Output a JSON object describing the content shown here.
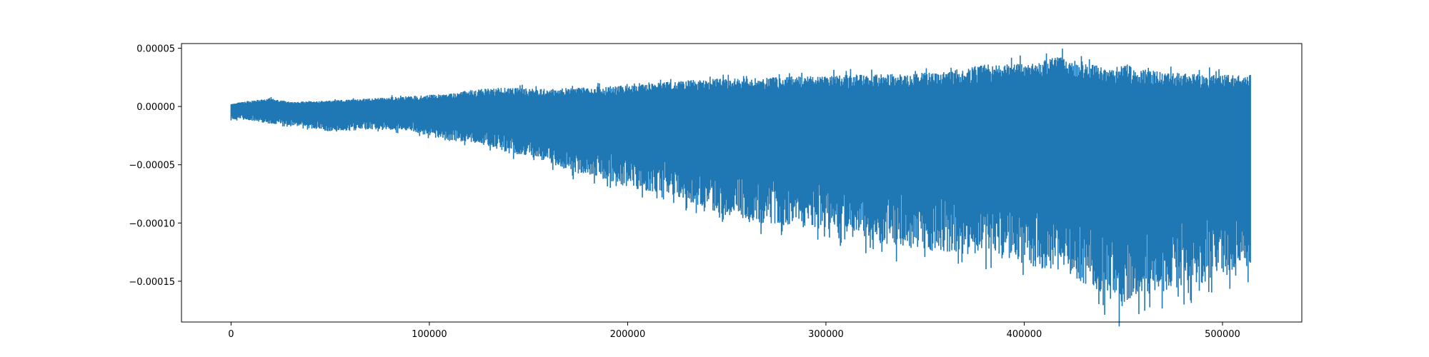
{
  "chart_data": {
    "type": "line",
    "title": "",
    "xlabel": "",
    "ylabel": "",
    "xlim": [
      -25000,
      540000
    ],
    "ylim": [
      -0.000185,
      5.4e-05
    ],
    "grid": false,
    "legend": "none",
    "series": [
      {
        "color": "#1f77b4",
        "style": "dense oscillating trace; upper and lower envelope shown",
        "upper_envelope": {
          "x": [
            0,
            5000,
            10000,
            20000,
            30000,
            50000,
            70000,
            90000,
            110000,
            120000,
            130000,
            140000,
            160000,
            180000,
            200000,
            220000,
            240000,
            260000,
            280000,
            300000,
            320000,
            340000,
            360000,
            380000,
            395000,
            405000,
            415000,
            418000,
            425000,
            435000,
            445000,
            450000,
            455000,
            465000,
            475000,
            485000,
            495000,
            505000,
            514000
          ],
          "y": [
            2e-06,
            4e-06,
            5e-06,
            7e-06,
            4e-06,
            5e-06,
            7e-06,
            9e-06,
            1.1e-05,
            1.4e-05,
            1.6e-05,
            1.6e-05,
            1.5e-05,
            1.7e-05,
            1.8e-05,
            2.1e-05,
            2.4e-05,
            2.4e-05,
            2.6e-05,
            2.6e-05,
            2.8e-05,
            2.8e-05,
            3e-05,
            3.6e-05,
            3.7e-05,
            3.7e-05,
            4.3e-05,
            4.3e-05,
            3.7e-05,
            3.6e-05,
            3.2e-05,
            3.8e-05,
            3.3e-05,
            3.1e-05,
            2.9e-05,
            2.8e-05,
            2.8e-05,
            2.7e-05,
            2.7e-05
          ]
        },
        "lower_envelope": {
          "x": [
            0,
            10000,
            20000,
            30000,
            50000,
            70000,
            90000,
            110000,
            120000,
            130000,
            140000,
            150000,
            160000,
            170000,
            180000,
            190000,
            200000,
            220000,
            240000,
            260000,
            280000,
            300000,
            320000,
            340000,
            360000,
            380000,
            400000,
            420000,
            435000,
            445000,
            448000,
            455000,
            465000,
            480000,
            490000,
            500000,
            510000,
            514000
          ],
          "y": [
            -1.1e-05,
            -1.2e-05,
            -1.5e-05,
            -1.6e-05,
            -2.2e-05,
            -2e-05,
            -2.1e-05,
            -3e-05,
            -3e-05,
            -3.4e-05,
            -4.1e-05,
            -4.3e-05,
            -4.8e-05,
            -5.6e-05,
            -5.9e-05,
            -6.3e-05,
            -7e-05,
            -7.5e-05,
            -8.8e-05,
            -9.9e-05,
            -0.000103,
            -0.000106,
            -0.000115,
            -0.000122,
            -0.000125,
            -0.000128,
            -0.000136,
            -0.000143,
            -0.000157,
            -0.000168,
            -0.000175,
            -0.000165,
            -0.000163,
            -0.000156,
            -0.000152,
            -0.000148,
            -0.000144,
            -0.000134
          ]
        }
      }
    ],
    "x_ticks": [
      0,
      100000,
      200000,
      300000,
      400000,
      500000
    ],
    "x_tick_labels": [
      "0",
      "100000",
      "200000",
      "300000",
      "400000",
      "500000"
    ],
    "y_ticks": [
      5e-05,
      0.0,
      -5e-05,
      -0.0001,
      -0.00015
    ],
    "y_tick_labels": [
      "0.00005",
      "0.00000",
      "−0.00005",
      "−0.00010",
      "−0.00015"
    ]
  }
}
